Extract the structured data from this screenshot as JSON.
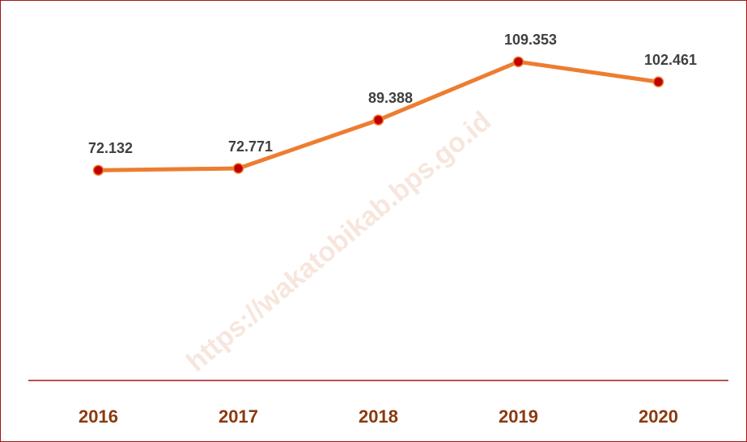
{
  "chart_data": {
    "type": "line",
    "categories": [
      "2016",
      "2017",
      "2018",
      "2019",
      "2020"
    ],
    "series": [
      {
        "color": "#ed7d31",
        "marker_color": "#c00000",
        "values": [
          72.132,
          72.771,
          89.388,
          109.353,
          102.461
        ]
      }
    ],
    "ylim": [
      0,
      120
    ],
    "watermark": "https://wakatobikab.bps.go.id"
  }
}
